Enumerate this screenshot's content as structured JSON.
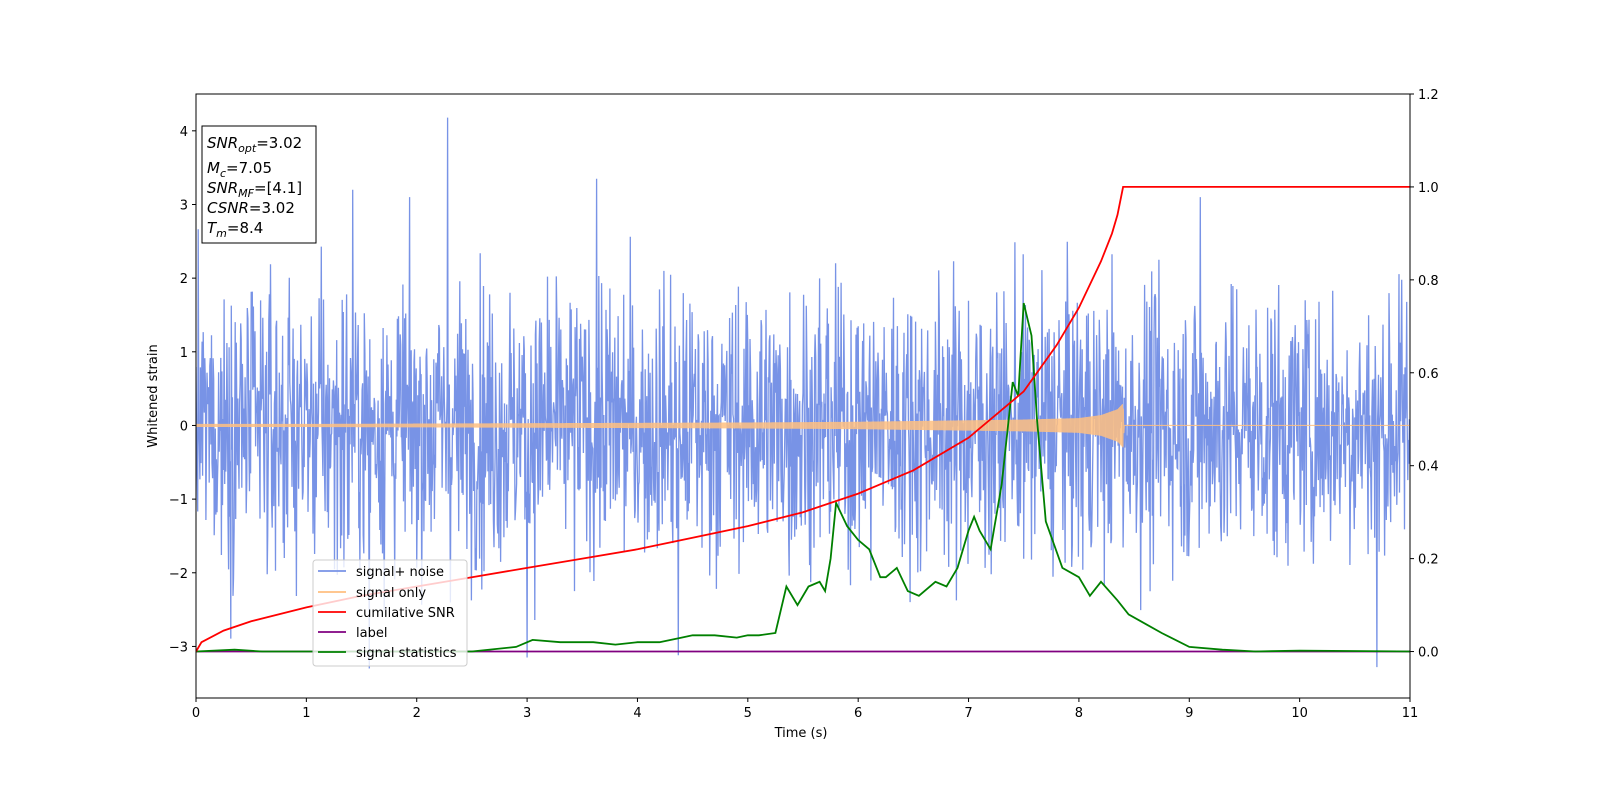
{
  "chart_data": {
    "type": "line",
    "title": "",
    "xlabel": "Time (s)",
    "ylabel": "Whitened strain",
    "y2label": "",
    "xlim": [
      0,
      11
    ],
    "ylim": [
      -3.7,
      4.5
    ],
    "y2lim": [
      -0.1,
      1.2
    ],
    "x_ticks": [
      0,
      1,
      2,
      3,
      4,
      5,
      6,
      7,
      8,
      9,
      10,
      11
    ],
    "y_ticks": [
      -3,
      -2,
      -1,
      0,
      1,
      2,
      3,
      4
    ],
    "y_tick_labels": [
      "−3",
      "−2",
      "−1",
      "0",
      "1",
      "2",
      "3",
      "4"
    ],
    "y2_ticks": [
      0.0,
      0.2,
      0.4,
      0.6,
      0.8,
      1.0,
      1.2
    ],
    "y2_tick_labels": [
      "0.0",
      "0.2",
      "0.4",
      "0.6",
      "0.8",
      "1.0",
      "1.2"
    ],
    "grid": false,
    "legend_position": "lower-left",
    "info_box": {
      "line1_main": "SNR",
      "line1_sub": "opt",
      "line1_value": "=3.02",
      "line2_main": "M",
      "line2_sub": "c",
      "line2_value": "=7.05",
      "line3_main": "SNR",
      "line3_sub": "MF",
      "line3_value": "=[4.1]",
      "line4_main": "CSNR",
      "line4_value": "=3.02",
      "line5_main": "T",
      "line5_sub": "m",
      "line5_value": "=8.4"
    },
    "series": [
      {
        "name": "signal+ noise",
        "axis": "left",
        "color": "#7893e6",
        "kind": "noise",
        "x_range": [
          0,
          11
        ],
        "typical_range": [
          -1.5,
          1.5
        ],
        "spikes": [
          {
            "x": 2.28,
            "y": 4.18
          },
          {
            "x": 3.63,
            "y": 3.35
          },
          {
            "x": 1.42,
            "y": 3.2
          },
          {
            "x": 9.1,
            "y": 3.1
          },
          {
            "x": 1.57,
            "y": -3.3
          },
          {
            "x": 10.7,
            "y": -3.28
          },
          {
            "x": 3.0,
            "y": -3.15
          },
          {
            "x": 4.37,
            "y": -3.12
          }
        ]
      },
      {
        "name": "signal only",
        "axis": "left",
        "color": "#ffbf80",
        "kind": "chirp",
        "x": [
          0,
          1,
          2,
          3,
          4,
          5,
          5.5,
          6,
          6.5,
          7,
          7.5,
          8,
          8.2,
          8.35,
          8.4,
          8.41,
          11
        ],
        "amplitude": [
          0.02,
          0.02,
          0.025,
          0.03,
          0.035,
          0.04,
          0.045,
          0.05,
          0.06,
          0.07,
          0.08,
          0.1,
          0.14,
          0.22,
          0.3,
          0,
          0
        ]
      },
      {
        "name": "cumilative SNR",
        "axis": "right",
        "color": "#ff0000",
        "x": [
          0,
          0.05,
          0.25,
          0.5,
          1,
          1.5,
          2,
          2.5,
          3,
          3.5,
          4,
          4.5,
          5,
          5.5,
          6,
          6.5,
          7,
          7.5,
          7.8,
          8.0,
          8.2,
          8.3,
          8.35,
          8.4,
          11
        ],
        "values": [
          0.0,
          0.02,
          0.045,
          0.065,
          0.095,
          0.12,
          0.14,
          0.16,
          0.18,
          0.2,
          0.22,
          0.245,
          0.27,
          0.3,
          0.34,
          0.39,
          0.46,
          0.56,
          0.66,
          0.74,
          0.84,
          0.9,
          0.94,
          1.0,
          1.0
        ]
      },
      {
        "name": "label",
        "axis": "right",
        "color": "#800080",
        "x": [
          0,
          11
        ],
        "values": [
          0.0,
          0.0
        ]
      },
      {
        "name": "signal statistics",
        "axis": "right",
        "color": "#008000",
        "x": [
          0,
          0.35,
          0.6,
          1.0,
          2.5,
          2.9,
          3.05,
          3.3,
          3.6,
          3.8,
          4.0,
          4.2,
          4.4,
          4.5,
          4.7,
          4.9,
          5.0,
          5.1,
          5.25,
          5.35,
          5.45,
          5.55,
          5.65,
          5.7,
          5.75,
          5.8,
          5.9,
          6.0,
          6.1,
          6.2,
          6.25,
          6.35,
          6.45,
          6.55,
          6.7,
          6.8,
          6.9,
          7.0,
          7.05,
          7.1,
          7.2,
          7.3,
          7.4,
          7.45,
          7.5,
          7.57,
          7.62,
          7.7,
          7.85,
          8.0,
          8.1,
          8.2,
          8.35,
          8.45,
          8.6,
          8.75,
          9.0,
          9.3,
          9.6,
          10.0,
          11.0
        ],
        "values": [
          0.0,
          0.004,
          0.0,
          0.0,
          0.0,
          0.01,
          0.025,
          0.02,
          0.02,
          0.015,
          0.02,
          0.02,
          0.03,
          0.035,
          0.035,
          0.03,
          0.035,
          0.035,
          0.04,
          0.14,
          0.1,
          0.14,
          0.15,
          0.13,
          0.2,
          0.32,
          0.27,
          0.24,
          0.22,
          0.16,
          0.16,
          0.18,
          0.13,
          0.12,
          0.15,
          0.14,
          0.18,
          0.26,
          0.29,
          0.26,
          0.22,
          0.36,
          0.58,
          0.55,
          0.75,
          0.68,
          0.5,
          0.28,
          0.18,
          0.16,
          0.12,
          0.15,
          0.11,
          0.08,
          0.06,
          0.04,
          0.01,
          0.004,
          0.0,
          0.002,
          0.0
        ]
      }
    ]
  }
}
